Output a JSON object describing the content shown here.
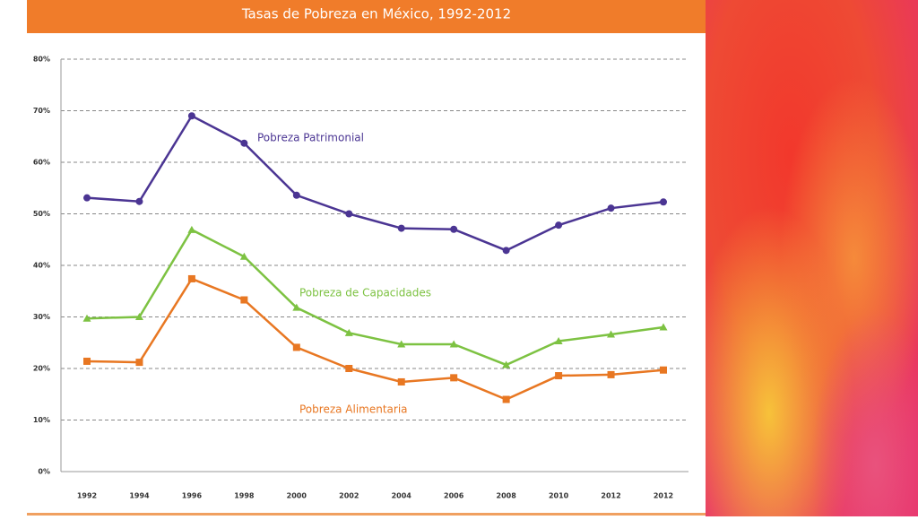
{
  "chart_data": {
    "type": "line",
    "title": "Tasas de Pobreza en México, 1992-2012",
    "categories": [
      "1992",
      "1994",
      "1996",
      "1998",
      "2000",
      "2002",
      "2004",
      "2006",
      "2008",
      "2010",
      "2012",
      "2012"
    ],
    "series": [
      {
        "name": "Pobreza Patrimonial",
        "color": "#4b3593",
        "marker": "circle",
        "values": [
          53.1,
          52.4,
          69.0,
          63.7,
          53.6,
          50.0,
          47.2,
          47.0,
          42.9,
          47.8,
          51.1,
          52.3
        ]
      },
      {
        "name": "Pobreza de Capacidades",
        "color": "#7dc242",
        "marker": "triangle",
        "values": [
          29.7,
          30.0,
          46.9,
          41.7,
          31.8,
          26.9,
          24.7,
          24.7,
          20.7,
          25.3,
          26.6,
          28.0
        ]
      },
      {
        "name": "Pobreza Alimentaria",
        "color": "#e87722",
        "marker": "square",
        "values": [
          21.4,
          21.2,
          37.4,
          33.3,
          24.1,
          20.0,
          17.4,
          18.2,
          14.0,
          18.6,
          18.8,
          19.7
        ]
      }
    ],
    "ylim": [
      0,
      80
    ],
    "yticks": [
      {
        "value": 0,
        "label": "0%"
      },
      {
        "value": 10,
        "label": "10%"
      },
      {
        "value": 20,
        "label": "20%"
      },
      {
        "value": 30,
        "label": "30%"
      },
      {
        "value": 40,
        "label": "40%"
      },
      {
        "value": 50,
        "label": "50%"
      },
      {
        "value": 60,
        "label": "60%"
      },
      {
        "value": 70,
        "label": "70%"
      },
      {
        "value": 80,
        "label": "80%"
      }
    ],
    "grid": true
  }
}
